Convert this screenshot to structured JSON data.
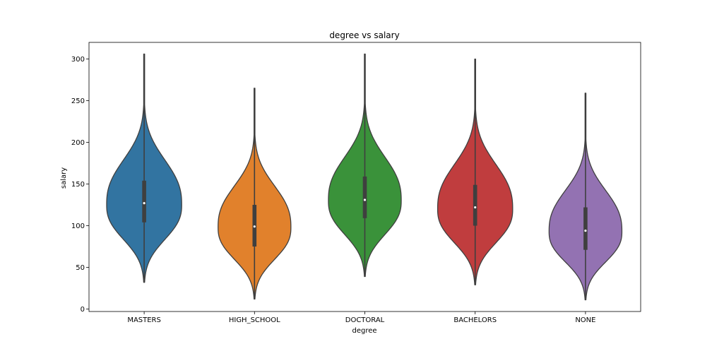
{
  "chart_data": {
    "type": "violin",
    "title": "degree vs salary",
    "xlabel": "degree",
    "ylabel": "salary",
    "ylim": [
      -3,
      320
    ],
    "yticks": [
      0,
      50,
      100,
      150,
      200,
      250,
      300
    ],
    "categories": [
      "MASTERS",
      "HIGH_SCHOOL",
      "DOCTORAL",
      "BACHELORS",
      "NONE"
    ],
    "violins": [
      {
        "category": "MASTERS",
        "color": "#3274a1",
        "min": 32,
        "max": 306,
        "q1": 104,
        "median": 127,
        "q3": 154,
        "mode": 125,
        "max_half_width": 0.34
      },
      {
        "category": "HIGH_SCHOOL",
        "color": "#e1812c",
        "min": 12,
        "max": 265,
        "q1": 75,
        "median": 99,
        "q3": 125,
        "mode": 98,
        "max_half_width": 0.33
      },
      {
        "category": "DOCTORAL",
        "color": "#3a923a",
        "min": 39,
        "max": 306,
        "q1": 109,
        "median": 131,
        "q3": 159,
        "mode": 130,
        "max_half_width": 0.33
      },
      {
        "category": "BACHELORS",
        "color": "#c03d3e",
        "min": 29,
        "max": 300,
        "q1": 100,
        "median": 122,
        "q3": 149,
        "mode": 120,
        "max_half_width": 0.34
      },
      {
        "category": "NONE",
        "color": "#9372b2",
        "min": 11,
        "max": 259,
        "q1": 71,
        "median": 94,
        "q3": 122,
        "mode": 93,
        "max_half_width": 0.33
      }
    ]
  }
}
